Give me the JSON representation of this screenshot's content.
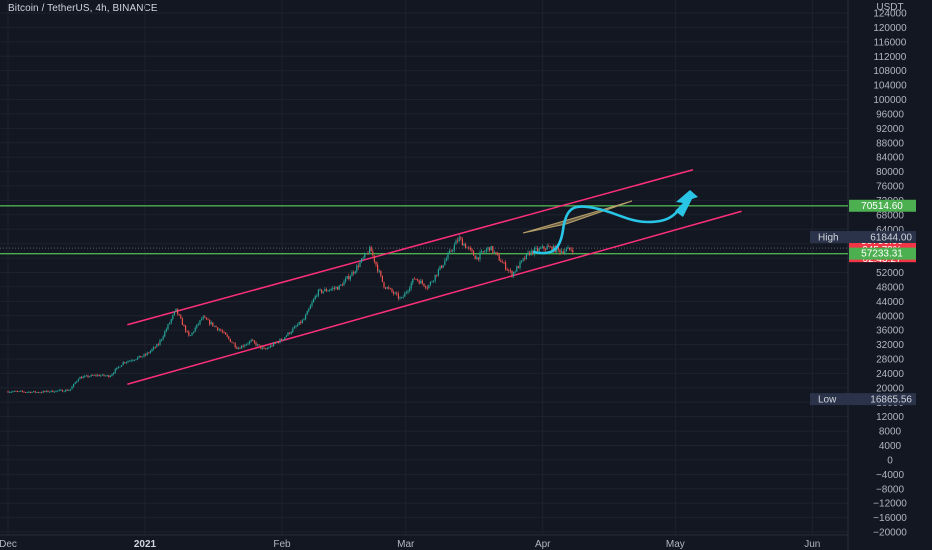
{
  "header": {
    "title": "Bitcoin / TetherUS, 4h, BINANCE",
    "currency": "USDT"
  },
  "colors": {
    "background": "#131722",
    "grid": "#1e222d",
    "up": "#26a69a",
    "down": "#ef5350",
    "channel": "#ff2f7a",
    "level": "#4caf50",
    "arrow": "#29c5e6",
    "triangle": "#b8a16a",
    "axis_text": "#b2b5be",
    "high_low_tag": "#2a3349",
    "price_tag": "#f23645"
  },
  "chart_data": {
    "type": "candlestick",
    "symbol": "Bitcoin / TetherUS",
    "timeframe": "4h",
    "exchange": "BINANCE",
    "y_ticks": [
      124000,
      120000,
      116000,
      112000,
      108000,
      104000,
      100000,
      96000,
      92000,
      88000,
      84000,
      80000,
      76000,
      72000,
      68000,
      64000,
      60000,
      56000,
      52000,
      48000,
      44000,
      40000,
      36000,
      32000,
      28000,
      24000,
      20000,
      16000,
      12000,
      8000,
      4000,
      0,
      -4000,
      -8000,
      -12000,
      -16000,
      -20000
    ],
    "y_tick_labels": [
      "124000",
      "120000",
      "116000",
      "112000",
      "108000",
      "104000",
      "100000",
      "96000",
      "92000",
      "88000",
      "84000",
      "80000",
      "76000",
      "72000",
      "68000",
      "64000",
      "60000",
      "56000",
      "52000",
      "48000",
      "44000",
      "40000",
      "36000",
      "32000",
      "28000",
      "24000",
      "20000",
      "16000",
      "12000",
      "8000",
      "4000",
      "0",
      "−4000",
      "−8000",
      "−12000",
      "−16000",
      "−20000"
    ],
    "ylim": [
      -20000,
      124000
    ],
    "x_ticks": [
      {
        "label": "Dec",
        "date": "2020-12-01"
      },
      {
        "label": "2021",
        "date": "2021-01-01",
        "bold": true
      },
      {
        "label": "Feb",
        "date": "2021-02-01"
      },
      {
        "label": "Mar",
        "date": "2021-03-01"
      },
      {
        "label": "Apr",
        "date": "2021-04-01"
      },
      {
        "label": "May",
        "date": "2021-05-01"
      },
      {
        "label": "Jun",
        "date": "2021-06-01"
      }
    ],
    "price_path": [
      [
        "2020-12-01",
        19000
      ],
      [
        "2020-12-08",
        18800
      ],
      [
        "2020-12-15",
        19400
      ],
      [
        "2020-12-17",
        22800
      ],
      [
        "2020-12-21",
        23500
      ],
      [
        "2020-12-24",
        23300
      ],
      [
        "2020-12-27",
        27000
      ],
      [
        "2021-01-01",
        29000
      ],
      [
        "2021-01-04",
        32000
      ],
      [
        "2021-01-08",
        41500
      ],
      [
        "2021-01-11",
        34000
      ],
      [
        "2021-01-14",
        39500
      ],
      [
        "2021-01-18",
        36000
      ],
      [
        "2021-01-22",
        31000
      ],
      [
        "2021-01-25",
        33000
      ],
      [
        "2021-01-28",
        30500
      ],
      [
        "2021-02-01",
        33500
      ],
      [
        "2021-02-06",
        39000
      ],
      [
        "2021-02-09",
        46500
      ],
      [
        "2021-02-14",
        48000
      ],
      [
        "2021-02-17",
        52000
      ],
      [
        "2021-02-21",
        58500
      ],
      [
        "2021-02-24",
        48500
      ],
      [
        "2021-02-28",
        44500
      ],
      [
        "2021-03-03",
        50500
      ],
      [
        "2021-03-06",
        48000
      ],
      [
        "2021-03-10",
        55500
      ],
      [
        "2021-03-13",
        61500
      ],
      [
        "2021-03-17",
        56000
      ],
      [
        "2021-03-20",
        59000
      ],
      [
        "2021-03-25",
        51500
      ],
      [
        "2021-03-29",
        57500
      ],
      [
        "2021-04-02",
        59000
      ],
      [
        "2021-04-05",
        58000
      ],
      [
        "2021-04-08",
        58500
      ]
    ],
    "channel": {
      "upper": [
        [
          "2020-12-28",
          37500
        ],
        [
          "2021-05-05",
          80500
        ]
      ],
      "lower": [
        [
          "2020-12-28",
          21000
        ],
        [
          "2021-05-16",
          69000
        ]
      ]
    },
    "levels": [
      {
        "value": 70514.6,
        "label": "70514.60"
      },
      {
        "value": 57233.31,
        "label": "57233.31"
      }
    ],
    "high": {
      "label": "High",
      "value": "61844.00",
      "price": 61844.0
    },
    "low": {
      "label": "Low",
      "value": "16865.56",
      "price": 16865.56
    },
    "current": {
      "price": 58750.0,
      "lines": [
        "58750.00",
        "245.79%",
        "02:43:27"
      ]
    }
  }
}
